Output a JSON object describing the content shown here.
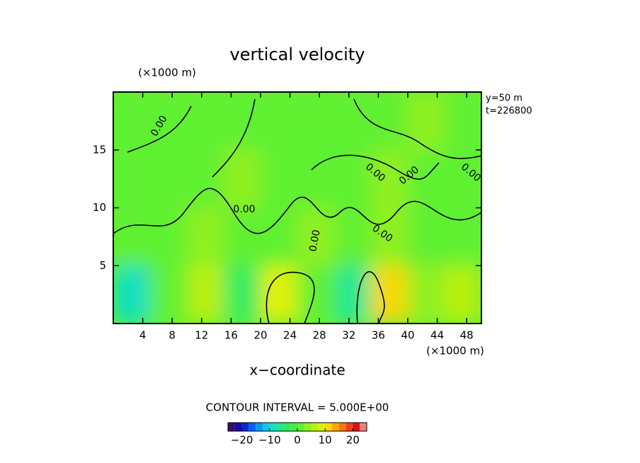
{
  "chart_data": {
    "type": "contour",
    "title": "vertical velocity",
    "y_unit_label": "(×1000 m)",
    "x_unit_label": "(×1000 m)",
    "xlabel": "x−coordinate",
    "annotations": [
      "y=50 m",
      "t=226800"
    ],
    "contour_interval_text": "CONTOUR INTERVAL = 5.000E+00",
    "contour_label": "0.00",
    "xlim": [
      0,
      50
    ],
    "ylim": [
      0,
      20
    ],
    "xticks": [
      4,
      8,
      12,
      16,
      20,
      24,
      28,
      32,
      36,
      40,
      44,
      48
    ],
    "yticks": [
      5,
      10,
      15
    ],
    "x": [
      2.5,
      7.5,
      12.5,
      17.5,
      22.5,
      27.5,
      32.5,
      37.5,
      42.5,
      47.5
    ],
    "y": [
      2.5,
      7.5,
      12.5,
      17.5
    ],
    "z": [
      [
        -8,
        2,
        6,
        -3,
        8,
        2,
        -6,
        12,
        3,
        7
      ],
      [
        1,
        2,
        3,
        2,
        1,
        3,
        2,
        4,
        2,
        1
      ],
      [
        1,
        1,
        2,
        3,
        2,
        1,
        2,
        3,
        1,
        2
      ],
      [
        2,
        1,
        2,
        1,
        1,
        2,
        1,
        2,
        3,
        2
      ]
    ],
    "colorbar": {
      "clim": [
        -25,
        25
      ],
      "colors": [
        "#3b0a6b",
        "#1a0aa0",
        "#0a2ad0",
        "#0a60f0",
        "#0a9af0",
        "#10c8e8",
        "#10e0c0",
        "#20e890",
        "#30ec60",
        "#40f040",
        "#60f030",
        "#90f020",
        "#b8f010",
        "#e0f000",
        "#f8d800",
        "#f8a800",
        "#f87800",
        "#f04020",
        "#e01010",
        "#f08080"
      ],
      "ticks": [
        {
          "value": -20,
          "label": "−20"
        },
        {
          "value": -10,
          "label": "−10"
        },
        0,
        10,
        20
      ]
    }
  }
}
